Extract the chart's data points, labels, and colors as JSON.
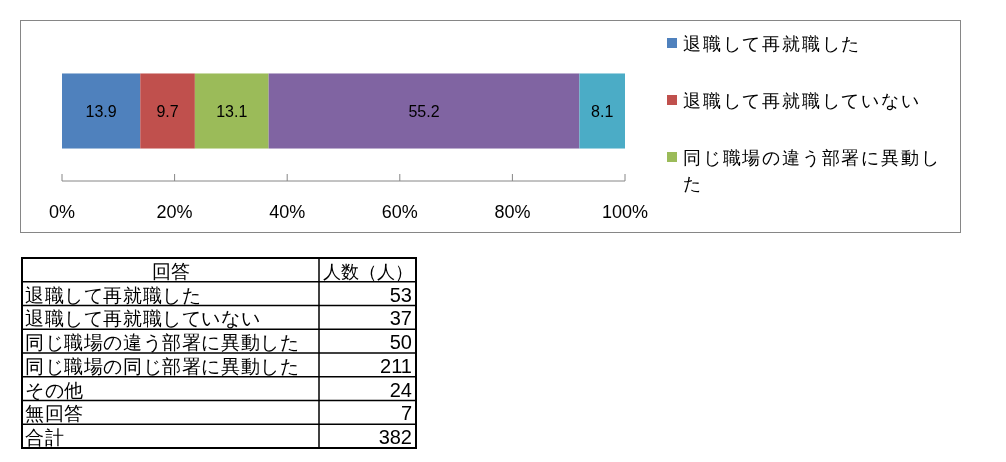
{
  "chart_data": [
    {
      "type": "bar",
      "orientation": "horizontal",
      "stacked": true,
      "categories": [
        null
      ],
      "series": [
        {
          "name": "退職して再就職した",
          "color": "#4f81bd",
          "values": [
            13.9
          ]
        },
        {
          "name": "退職して再就職していない",
          "color": "#c0504d",
          "values": [
            9.7
          ]
        },
        {
          "name": "同じ職場の違う部署に異動した",
          "color": "#9bbb59",
          "values": [
            13.1
          ]
        },
        {
          "color": "#8064a2",
          "values": [
            55.2
          ]
        },
        {
          "color": "#4bacc6",
          "values": [
            8.1
          ]
        }
      ],
      "xlim": [
        0,
        100
      ],
      "xticks": [
        {
          "value": 0,
          "label": "0%"
        },
        {
          "value": 20,
          "label": "20%"
        },
        {
          "value": 40,
          "label": "40%"
        },
        {
          "value": 60,
          "label": "60%"
        },
        {
          "value": 80,
          "label": "80%"
        },
        {
          "value": 100,
          "label": "100%"
        }
      ],
      "data_labels": true,
      "legend": "right"
    },
    {
      "type": "other",
      "annotations": [
        "回答",
        "人数（人）"
      ],
      "categories": [
        "退職して再就職した",
        "退職して再就職していない",
        "同じ職場の違う部署に異動した",
        "同じ職場の同じ部署に異動した",
        "その他",
        "無回答",
        "合計"
      ],
      "values": [
        53,
        37,
        50,
        211,
        24,
        7,
        382
      ],
      "data_labels": true
    }
  ]
}
